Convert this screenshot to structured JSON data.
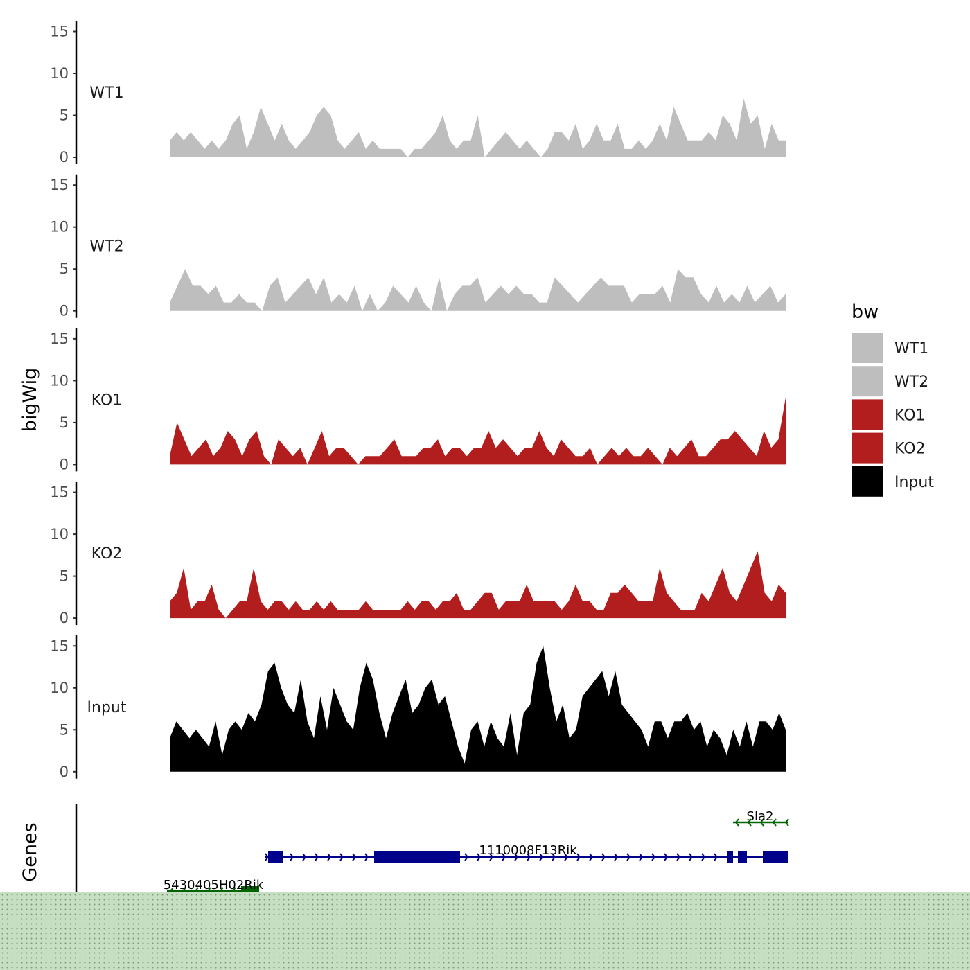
{
  "chart_data": {
    "type": "area",
    "subtype": "genome-browser-tracks",
    "ylabel": "bigWig",
    "genes_label": "Genes",
    "ylim": [
      0,
      15.5
    ],
    "yticks": [
      0,
      5,
      10,
      15
    ],
    "legend": {
      "title": "bw",
      "placement": "right",
      "entries": [
        {
          "label": "WT1",
          "color": "#bebebe"
        },
        {
          "label": "WT2",
          "color": "#bebebe"
        },
        {
          "label": "KO1",
          "color": "#b21d1d"
        },
        {
          "label": "KO2",
          "color": "#b21d1d"
        },
        {
          "label": "Input",
          "color": "#000000"
        }
      ]
    },
    "series": [
      {
        "name": "WT1",
        "color": "#bebebe",
        "values": [
          2,
          3,
          2,
          3,
          2,
          1,
          2,
          1,
          2,
          4,
          5,
          1,
          3,
          6,
          4,
          2,
          4,
          2,
          1,
          2,
          3,
          5,
          6,
          5,
          2,
          1,
          2,
          3,
          1,
          2,
          1,
          1,
          1,
          1,
          0,
          1,
          1,
          2,
          3,
          5,
          2,
          1,
          2,
          2,
          5,
          0,
          1,
          2,
          3,
          2,
          1,
          2,
          1,
          0,
          1,
          3,
          3,
          2,
          4,
          1,
          2,
          4,
          2,
          2,
          4,
          1,
          1,
          2,
          1,
          2,
          4,
          2,
          6,
          4,
          2,
          2,
          2,
          3,
          2,
          5,
          4,
          2,
          7,
          4,
          5,
          1,
          4,
          2,
          2
        ]
      },
      {
        "name": "WT2",
        "color": "#bebebe",
        "values": [
          1,
          3,
          5,
          3,
          3,
          2,
          3,
          1,
          1,
          2,
          1,
          1,
          0,
          3,
          4,
          1,
          2,
          3,
          4,
          2,
          4,
          1,
          2,
          1,
          3,
          0,
          2,
          0,
          1,
          3,
          2,
          1,
          3,
          1,
          0,
          4,
          0,
          2,
          3,
          3,
          4,
          1,
          2,
          3,
          2,
          3,
          2,
          2,
          1,
          1,
          4,
          3,
          2,
          1,
          2,
          3,
          4,
          3,
          3,
          3,
          1,
          2,
          2,
          2,
          3,
          1,
          5,
          4,
          4,
          2,
          1,
          3,
          1,
          2,
          1,
          3,
          1,
          2,
          3,
          1,
          2
        ]
      },
      {
        "name": "KO1",
        "color": "#b21d1d",
        "values": [
          1,
          5,
          3,
          1,
          2,
          3,
          1,
          2,
          4,
          3,
          1,
          3,
          4,
          1,
          0,
          3,
          2,
          1,
          2,
          0,
          2,
          4,
          1,
          2,
          2,
          1,
          0,
          1,
          1,
          1,
          2,
          3,
          1,
          1,
          1,
          2,
          2,
          3,
          1,
          2,
          2,
          1,
          2,
          2,
          4,
          2,
          3,
          2,
          1,
          2,
          2,
          4,
          2,
          1,
          3,
          2,
          1,
          1,
          2,
          0,
          1,
          2,
          1,
          2,
          1,
          1,
          2,
          1,
          0,
          2,
          1,
          2,
          3,
          1,
          1,
          2,
          3,
          3,
          4,
          3,
          2,
          1,
          4,
          2,
          3,
          8
        ]
      },
      {
        "name": "KO2",
        "color": "#b21d1d",
        "values": [
          2,
          3,
          6,
          1,
          2,
          2,
          4,
          1,
          0,
          1,
          2,
          2,
          6,
          2,
          1,
          2,
          2,
          1,
          2,
          1,
          1,
          2,
          1,
          2,
          1,
          1,
          1,
          1,
          2,
          1,
          1,
          1,
          1,
          1,
          2,
          1,
          2,
          2,
          1,
          2,
          2,
          3,
          1,
          1,
          2,
          3,
          3,
          1,
          2,
          2,
          2,
          4,
          2,
          2,
          2,
          2,
          1,
          2,
          4,
          2,
          2,
          1,
          1,
          3,
          3,
          4,
          3,
          2,
          2,
          2,
          6,
          3,
          2,
          1,
          1,
          1,
          3,
          2,
          4,
          6,
          3,
          2,
          4,
          6,
          8,
          3,
          2,
          4,
          3
        ]
      },
      {
        "name": "Input",
        "color": "#000000",
        "values": [
          4,
          6,
          5,
          4,
          5,
          4,
          3,
          6,
          2,
          5,
          6,
          5,
          7,
          6,
          8,
          12,
          13,
          10,
          8,
          7,
          11,
          6,
          4,
          9,
          5,
          10,
          8,
          6,
          5,
          10,
          13,
          11,
          7,
          4,
          7,
          9,
          11,
          7,
          8,
          10,
          11,
          8,
          9,
          6,
          3,
          1,
          5,
          6,
          3,
          6,
          4,
          3,
          7,
          2,
          7,
          8,
          13,
          15,
          10,
          6,
          8,
          4,
          5,
          9,
          10,
          11,
          12,
          9,
          12,
          8,
          7,
          6,
          5,
          3,
          6,
          6,
          4,
          6,
          6,
          7,
          5,
          6,
          3,
          5,
          4,
          2,
          5,
          3,
          6,
          3,
          6,
          6,
          5,
          7,
          5
        ]
      }
    ],
    "genes": [
      {
        "name": "Sla2",
        "strand": "-",
        "color": "#006400"
      },
      {
        "name": "1110008F13Rik",
        "strand": "+",
        "color": "#00008b"
      },
      {
        "name": "5430405H02Rik",
        "strand": "-",
        "color": "#006400"
      }
    ]
  }
}
